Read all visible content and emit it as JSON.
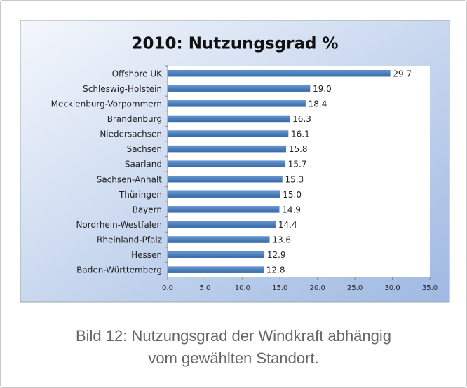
{
  "chart_data": {
    "type": "barh",
    "title": "2010: Nutzungsgrad %",
    "categories": [
      "Offshore UK",
      "Schleswig-Holstein",
      "Mecklenburg-Vorpommern",
      "Brandenburg",
      "Niedersachsen",
      "Sachsen",
      "Saarland",
      "Sachsen-Anhalt",
      "Thüringen",
      "Bayern",
      "Nordrhein-Westfalen",
      "Rheinland-Pfalz",
      "Hessen",
      "Baden-Württemberg"
    ],
    "values": [
      29.7,
      19.0,
      18.4,
      16.3,
      16.1,
      15.8,
      15.7,
      15.3,
      15.0,
      14.9,
      14.4,
      13.6,
      12.9,
      12.8
    ],
    "value_labels": [
      "29.7",
      "19.0",
      "18.4",
      "16.3",
      "16.1",
      "15.8",
      "15.7",
      "15.3",
      "15.0",
      "14.9",
      "14.4",
      "13.6",
      "12.9",
      "12.8"
    ],
    "color": "#4a7ebb",
    "xlim": [
      0,
      35
    ],
    "xticks": [
      {
        "value": 0,
        "label": "0.0"
      },
      {
        "value": 5,
        "label": "5.0"
      },
      {
        "value": 10,
        "label": "10.0"
      },
      {
        "value": 15,
        "label": "15.0"
      },
      {
        "value": 20,
        "label": "20.0"
      },
      {
        "value": 25,
        "label": "25.0"
      },
      {
        "value": 30,
        "label": "30.0"
      },
      {
        "value": 35,
        "label": "35.0"
      }
    ]
  },
  "caption": {
    "line1": "Bild 12: Nutzungsgrad der Windkraft abhängig",
    "line2": "vom gewählten Standort."
  }
}
